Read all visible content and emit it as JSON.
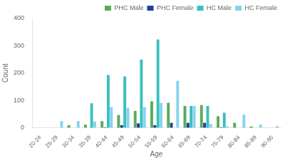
{
  "chart_data": {
    "type": "bar",
    "xlabel": "Age",
    "ylabel": "Count",
    "categories": [
      "20-24",
      "25-29",
      "30-34",
      "35-39",
      "40-44",
      "45-49",
      "50-54",
      "55-59",
      "60-64",
      "65-69",
      "70-74",
      "75-79",
      "80-84",
      "85-89",
      "90-95"
    ],
    "series": [
      {
        "name": "PHC Male",
        "color": "#5aab5a",
        "values": [
          0,
          0,
          10,
          12,
          25,
          47,
          62,
          97,
          92,
          80,
          83,
          42,
          18,
          5,
          0
        ]
      },
      {
        "name": "PHC Female",
        "color": "#1e3fa0",
        "values": [
          0,
          0,
          0,
          0,
          2,
          10,
          16,
          10,
          18,
          18,
          18,
          2,
          0,
          0,
          0
        ]
      },
      {
        "name": "HC Male",
        "color": "#3abfbf",
        "values": [
          0,
          0,
          0,
          90,
          193,
          188,
          250,
          323,
          0,
          80,
          80,
          55,
          0,
          0,
          0
        ]
      },
      {
        "name": "HC Female",
        "color": "#87d3ed",
        "values": [
          0,
          25,
          25,
          23,
          76,
          73,
          76,
          92,
          172,
          80,
          14,
          5,
          48,
          12,
          6
        ]
      }
    ],
    "ylim": [
      0,
      400
    ],
    "yticks": [
      0,
      100,
      200,
      300,
      400
    ],
    "grid": false,
    "legend": "upper right"
  }
}
